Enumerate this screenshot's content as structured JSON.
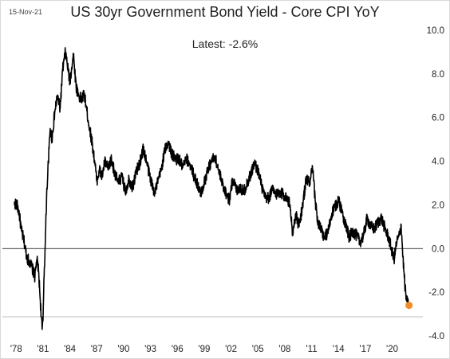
{
  "header": {
    "date": "15-Nov-21",
    "title": "US 30yr Government Bond Yield - Core CPI YoY",
    "latest_label": "Latest:  -2.6%"
  },
  "colors": {
    "line": "#000000",
    "latest_marker": "#f28c28",
    "zero_line": "#000000"
  },
  "chart_data": {
    "type": "line",
    "title": "US 30yr Government Bond Yield - Core CPI YoY",
    "annotation": "Latest:  -2.6%",
    "xlabel": "",
    "ylabel": "",
    "x_tick_labels": [
      "'78",
      "'81",
      "'84",
      "'87",
      "'90",
      "'93",
      "'96",
      "'99",
      "'02",
      "'05",
      "'08",
      "'11",
      "'14",
      "'17",
      "'20"
    ],
    "y_tick_labels": [
      "10.0",
      "8.0",
      "6.0",
      "4.0",
      "2.0",
      "0.0",
      "-2.0",
      "-4.0"
    ],
    "ylim": [
      -4.0,
      10.0
    ],
    "xlim": [
      1977.8,
      2022.0
    ],
    "y_axis_side": "right",
    "grid": false,
    "reference_line": 0.0,
    "series": [
      {
        "x": [
          1977.8,
          1978.0,
          1978.3,
          1978.6,
          1978.9,
          1979.2,
          1979.5,
          1979.8,
          1980.1,
          1980.3,
          1980.5,
          1980.7,
          1980.9,
          1981.0,
          1981.1,
          1981.25,
          1981.4,
          1981.6,
          1981.8,
          1982.0,
          1982.3,
          1982.6,
          1982.9,
          1983.2,
          1983.5,
          1983.8,
          1984.0,
          1984.2,
          1984.4,
          1984.5,
          1984.7,
          1985.0,
          1985.3,
          1985.6,
          1985.9,
          1986.2,
          1986.5,
          1986.8,
          1987.0,
          1987.3,
          1987.6,
          1987.9,
          1988.3,
          1988.6,
          1989.0,
          1989.4,
          1989.8,
          1990.2,
          1990.6,
          1991.0,
          1991.4,
          1991.8,
          1992.2,
          1992.6,
          1993.0,
          1993.4,
          1993.8,
          1994.2,
          1994.6,
          1995.0,
          1995.4,
          1995.8,
          1996.2,
          1996.6,
          1997.0,
          1997.4,
          1997.8,
          1998.2,
          1998.6,
          1999.0,
          1999.4,
          1999.8,
          2000.2,
          2000.6,
          2001.0,
          2001.4,
          2001.8,
          2002.2,
          2002.6,
          2003.0,
          2003.4,
          2003.8,
          2004.2,
          2004.6,
          2005.0,
          2005.4,
          2005.8,
          2006.2,
          2006.6,
          2007.0,
          2007.4,
          2007.8,
          2008.2,
          2008.6,
          2008.9,
          2009.2,
          2009.6,
          2010.0,
          2010.4,
          2010.8,
          2011.1,
          2011.4,
          2011.7,
          2012.0,
          2012.4,
          2012.8,
          2013.2,
          2013.6,
          2014.0,
          2014.4,
          2014.8,
          2015.2,
          2015.6,
          2016.0,
          2016.4,
          2016.8,
          2017.2,
          2017.6,
          2018.0,
          2018.4,
          2018.8,
          2019.2,
          2019.6,
          2019.9,
          2020.2,
          2020.5,
          2020.8,
          2021.0,
          2021.2,
          2021.4,
          2021.6,
          2021.88
        ],
        "values": [
          2.0,
          2.1,
          1.7,
          0.8,
          0.3,
          -0.4,
          -0.6,
          -0.9,
          -1.3,
          -0.5,
          -1.0,
          -2.4,
          -3.7,
          -3.3,
          -1.4,
          0.2,
          2.4,
          4.0,
          5.5,
          5.0,
          6.2,
          7.0,
          6.4,
          8.2,
          9.0,
          8.2,
          7.6,
          8.3,
          8.9,
          8.4,
          7.4,
          7.0,
          6.8,
          7.1,
          6.3,
          5.5,
          4.8,
          3.9,
          3.1,
          3.6,
          3.3,
          4.0,
          3.6,
          4.1,
          3.5,
          3.0,
          3.3,
          2.6,
          3.2,
          2.8,
          3.5,
          3.9,
          4.6,
          3.9,
          3.2,
          2.6,
          3.0,
          3.6,
          4.5,
          4.9,
          4.3,
          4.1,
          4.1,
          3.7,
          4.1,
          3.9,
          3.4,
          3.0,
          2.5,
          3.0,
          3.6,
          4.0,
          4.2,
          3.6,
          3.0,
          2.6,
          2.2,
          3.2,
          2.7,
          2.8,
          2.6,
          3.0,
          3.4,
          3.9,
          3.6,
          2.9,
          2.3,
          2.3,
          2.7,
          2.5,
          2.6,
          2.5,
          2.3,
          2.0,
          0.6,
          1.6,
          1.0,
          2.0,
          3.2,
          3.0,
          3.7,
          2.2,
          1.2,
          0.9,
          0.5,
          0.7,
          1.5,
          1.9,
          2.2,
          1.7,
          1.1,
          0.5,
          0.8,
          0.6,
          0.3,
          0.6,
          1.4,
          1.0,
          0.9,
          1.2,
          1.4,
          0.9,
          0.5,
          0.0,
          -0.5,
          0.3,
          0.6,
          1.1,
          -0.4,
          -1.6,
          -2.4,
          -2.6
        ],
        "latest": {
          "x": 2021.88,
          "y": -2.6
        }
      }
    ]
  }
}
